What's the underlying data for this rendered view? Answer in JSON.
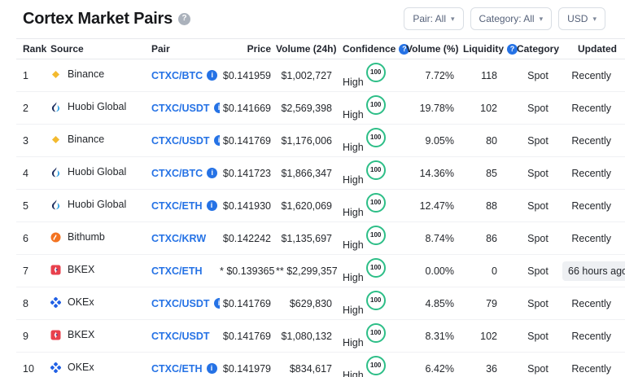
{
  "page": {
    "title": "Cortex Market Pairs",
    "title_help_icon": "question-mark"
  },
  "filters": {
    "pair_label": "Pair: All",
    "category_label": "Category: All",
    "currency_label": "USD"
  },
  "colors": {
    "link_blue": "#2572e5",
    "confidence_green": "#2dbe87",
    "updated_highlight_bg": "#eef0f3",
    "binance_gold": "#f3ba2f",
    "huobi_navy": "#1c2d5e",
    "huobi_cyan": "#2f9fe3",
    "bithumb_orange": "#f37321",
    "bkex_red": "#e8414d",
    "okex_blue": "#2160e5",
    "help_gray": "#abb2bc"
  },
  "table": {
    "columns": [
      "Rank",
      "Source",
      "Pair",
      "Price",
      "Volume (24h)",
      "Confidence",
      "Volume (%)",
      "Liquidity",
      "Category",
      "Updated"
    ],
    "rows": [
      {
        "rank": "1",
        "source": "Binance",
        "source_icon": "binance-icon",
        "pair": "CTXC/BTC",
        "pair_info": true,
        "price": "$0.141959",
        "volume_24h": "$1,002,727",
        "confidence_label": "High",
        "confidence_score": "100",
        "volume_pct": "7.72%",
        "liquidity": "118",
        "category": "Spot",
        "updated": "Recently",
        "updated_highlight": false
      },
      {
        "rank": "2",
        "source": "Huobi Global",
        "source_icon": "huobi-icon",
        "pair": "CTXC/USDT",
        "pair_info": true,
        "price": "$0.141669",
        "volume_24h": "$2,569,398",
        "confidence_label": "High",
        "confidence_score": "100",
        "volume_pct": "19.78%",
        "liquidity": "102",
        "category": "Spot",
        "updated": "Recently",
        "updated_highlight": false
      },
      {
        "rank": "3",
        "source": "Binance",
        "source_icon": "binance-icon",
        "pair": "CTXC/USDT",
        "pair_info": true,
        "price": "$0.141769",
        "volume_24h": "$1,176,006",
        "confidence_label": "High",
        "confidence_score": "100",
        "volume_pct": "9.05%",
        "liquidity": "80",
        "category": "Spot",
        "updated": "Recently",
        "updated_highlight": false
      },
      {
        "rank": "4",
        "source": "Huobi Global",
        "source_icon": "huobi-icon",
        "pair": "CTXC/BTC",
        "pair_info": true,
        "price": "$0.141723",
        "volume_24h": "$1,866,347",
        "confidence_label": "High",
        "confidence_score": "100",
        "volume_pct": "14.36%",
        "liquidity": "85",
        "category": "Spot",
        "updated": "Recently",
        "updated_highlight": false
      },
      {
        "rank": "5",
        "source": "Huobi Global",
        "source_icon": "huobi-icon",
        "pair": "CTXC/ETH",
        "pair_info": true,
        "price": "$0.141930",
        "volume_24h": "$1,620,069",
        "confidence_label": "High",
        "confidence_score": "100",
        "volume_pct": "12.47%",
        "liquidity": "88",
        "category": "Spot",
        "updated": "Recently",
        "updated_highlight": false
      },
      {
        "rank": "6",
        "source": "Bithumb",
        "source_icon": "bithumb-icon",
        "pair": "CTXC/KRW",
        "pair_info": false,
        "price": "$0.142242",
        "volume_24h": "$1,135,697",
        "confidence_label": "High",
        "confidence_score": "100",
        "volume_pct": "8.74%",
        "liquidity": "86",
        "category": "Spot",
        "updated": "Recently",
        "updated_highlight": false
      },
      {
        "rank": "7",
        "source": "BKEX",
        "source_icon": "bkex-icon",
        "pair": "CTXC/ETH",
        "pair_info": false,
        "price": "* $0.139365",
        "volume_24h": "** $2,299,357",
        "confidence_label": "High",
        "confidence_score": "100",
        "volume_pct": "0.00%",
        "liquidity": "0",
        "category": "Spot",
        "updated": "66 hours ago",
        "updated_highlight": true
      },
      {
        "rank": "8",
        "source": "OKEx",
        "source_icon": "okex-icon",
        "pair": "CTXC/USDT",
        "pair_info": true,
        "price": "$0.141769",
        "volume_24h": "$629,830",
        "confidence_label": "High",
        "confidence_score": "100",
        "volume_pct": "4.85%",
        "liquidity": "79",
        "category": "Spot",
        "updated": "Recently",
        "updated_highlight": false
      },
      {
        "rank": "9",
        "source": "BKEX",
        "source_icon": "bkex-icon",
        "pair": "CTXC/USDT",
        "pair_info": false,
        "price": "$0.141769",
        "volume_24h": "$1,080,132",
        "confidence_label": "High",
        "confidence_score": "100",
        "volume_pct": "8.31%",
        "liquidity": "102",
        "category": "Spot",
        "updated": "Recently",
        "updated_highlight": false
      },
      {
        "rank": "10",
        "source": "OKEx",
        "source_icon": "okex-icon",
        "pair": "CTXC/ETH",
        "pair_info": true,
        "price": "$0.141979",
        "volume_24h": "$834,617",
        "confidence_label": "High",
        "confidence_score": "100",
        "volume_pct": "6.42%",
        "liquidity": "36",
        "category": "Spot",
        "updated": "Recently",
        "updated_highlight": false
      }
    ]
  }
}
